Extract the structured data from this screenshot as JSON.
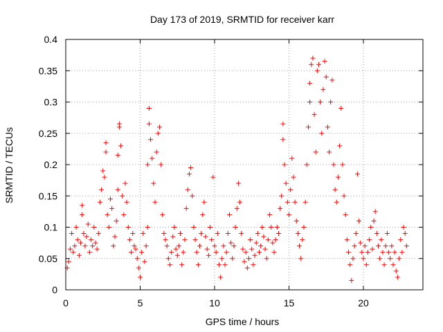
{
  "chart_data": {
    "type": "scatter",
    "title": "Day 173 of 2019, SRMTID for receiver karr",
    "xlabel": "GPS time / hours",
    "ylabel": "SRMTID / TECUs",
    "xlim": [
      0,
      24
    ],
    "ylim": [
      0,
      0.4
    ],
    "xticks": [
      "0",
      "5",
      "10",
      "15",
      "20"
    ],
    "xtick_values": [
      0,
      5,
      10,
      15,
      20
    ],
    "yticks": [
      "0",
      "0.05",
      "0.1",
      "0.15",
      "0.2",
      "0.25",
      "0.3",
      "0.35",
      "0.4"
    ],
    "ytick_values": [
      0,
      0.05,
      0.1,
      0.15,
      0.2,
      0.25,
      0.3,
      0.35,
      0.4
    ],
    "grid": true,
    "marker": "+",
    "series": [
      {
        "name": "SRMTID",
        "color": "#ff0000",
        "points": [
          [
            0.1,
            0.035
          ],
          [
            0.2,
            0.045
          ],
          [
            0.3,
            0.065
          ],
          [
            0.4,
            0.09
          ],
          [
            0.5,
            0.06
          ],
          [
            0.6,
            0.07
          ],
          [
            0.7,
            0.1
          ],
          [
            0.8,
            0.08
          ],
          [
            0.9,
            0.055
          ],
          [
            1.0,
            0.075
          ],
          [
            1.1,
            0.12
          ],
          [
            1.1,
            0.135
          ],
          [
            1.2,
            0.09
          ],
          [
            1.3,
            0.07
          ],
          [
            1.4,
            0.085
          ],
          [
            1.5,
            0.105
          ],
          [
            1.6,
            0.06
          ],
          [
            1.7,
            0.08
          ],
          [
            1.8,
            0.07
          ],
          [
            1.9,
            0.1
          ],
          [
            2.0,
            0.075
          ],
          [
            2.1,
            0.065
          ],
          [
            2.2,
            0.09
          ],
          [
            2.3,
            0.14
          ],
          [
            2.4,
            0.16
          ],
          [
            2.5,
            0.19
          ],
          [
            2.6,
            0.18
          ],
          [
            2.7,
            0.22
          ],
          [
            2.7,
            0.235
          ],
          [
            2.8,
            0.12
          ],
          [
            2.9,
            0.1
          ],
          [
            3.0,
            0.145
          ],
          [
            3.1,
            0.13
          ],
          [
            3.2,
            0.07
          ],
          [
            3.3,
            0.085
          ],
          [
            3.4,
            0.11
          ],
          [
            3.5,
            0.16
          ],
          [
            3.5,
            0.215
          ],
          [
            3.6,
            0.26
          ],
          [
            3.6,
            0.265
          ],
          [
            3.7,
            0.23
          ],
          [
            3.8,
            0.15
          ],
          [
            3.9,
            0.12
          ],
          [
            4.0,
            0.17
          ],
          [
            4.1,
            0.14
          ],
          [
            4.2,
            0.1
          ],
          [
            4.3,
            0.08
          ],
          [
            4.4,
            0.06
          ],
          [
            4.5,
            0.09
          ],
          [
            4.6,
            0.07
          ],
          [
            4.7,
            0.065
          ],
          [
            4.8,
            0.05
          ],
          [
            4.9,
            0.035
          ],
          [
            5.0,
            0.02
          ],
          [
            5.1,
            0.06
          ],
          [
            5.2,
            0.09
          ],
          [
            5.3,
            0.045
          ],
          [
            5.4,
            0.07
          ],
          [
            5.5,
            0.1
          ],
          [
            5.5,
            0.2
          ],
          [
            5.6,
            0.29
          ],
          [
            5.6,
            0.265
          ],
          [
            5.7,
            0.24
          ],
          [
            5.8,
            0.21
          ],
          [
            5.9,
            0.17
          ],
          [
            6.0,
            0.14
          ],
          [
            6.1,
            0.22
          ],
          [
            6.2,
            0.25
          ],
          [
            6.3,
            0.26
          ],
          [
            6.4,
            0.2
          ],
          [
            6.5,
            0.12
          ],
          [
            6.6,
            0.09
          ],
          [
            6.7,
            0.08
          ],
          [
            6.8,
            0.07
          ],
          [
            6.9,
            0.05
          ],
          [
            7.0,
            0.04
          ],
          [
            7.1,
            0.06
          ],
          [
            7.2,
            0.085
          ],
          [
            7.3,
            0.1
          ],
          [
            7.4,
            0.065
          ],
          [
            7.5,
            0.055
          ],
          [
            7.6,
            0.07
          ],
          [
            7.7,
            0.09
          ],
          [
            7.8,
            0.04
          ],
          [
            7.9,
            0.06
          ],
          [
            8.0,
            0.08
          ],
          [
            8.1,
            0.13
          ],
          [
            8.2,
            0.16
          ],
          [
            8.3,
            0.185
          ],
          [
            8.4,
            0.195
          ],
          [
            8.5,
            0.15
          ],
          [
            8.6,
            0.1
          ],
          [
            8.7,
            0.08
          ],
          [
            8.8,
            0.06
          ],
          [
            8.9,
            0.04
          ],
          [
            9.0,
            0.07
          ],
          [
            9.1,
            0.09
          ],
          [
            9.2,
            0.12
          ],
          [
            9.3,
            0.14
          ],
          [
            9.4,
            0.085
          ],
          [
            9.5,
            0.065
          ],
          [
            9.6,
            0.055
          ],
          [
            9.7,
            0.1
          ],
          [
            9.8,
            0.08
          ],
          [
            9.9,
            0.18
          ],
          [
            10.0,
            0.07
          ],
          [
            10.1,
            0.06
          ],
          [
            10.2,
            0.09
          ],
          [
            10.3,
            0.04
          ],
          [
            10.4,
            0.02
          ],
          [
            10.5,
            0.05
          ],
          [
            10.6,
            0.07
          ],
          [
            10.7,
            0.04
          ],
          [
            10.8,
            0.06
          ],
          [
            10.9,
            0.09
          ],
          [
            11.0,
            0.12
          ],
          [
            11.1,
            0.075
          ],
          [
            11.2,
            0.05
          ],
          [
            11.3,
            0.07
          ],
          [
            11.4,
            0.1
          ],
          [
            11.5,
            0.13
          ],
          [
            11.6,
            0.17
          ],
          [
            11.7,
            0.14
          ],
          [
            11.8,
            0.09
          ],
          [
            11.9,
            0.065
          ],
          [
            12.0,
            0.045
          ],
          [
            12.1,
            0.06
          ],
          [
            12.2,
            0.035
          ],
          [
            12.3,
            0.05
          ],
          [
            12.4,
            0.08
          ],
          [
            12.5,
            0.065
          ],
          [
            12.6,
            0.04
          ],
          [
            12.7,
            0.055
          ],
          [
            12.8,
            0.075
          ],
          [
            12.9,
            0.09
          ],
          [
            13.0,
            0.06
          ],
          [
            13.1,
            0.07
          ],
          [
            13.2,
            0.1
          ],
          [
            13.3,
            0.085
          ],
          [
            13.4,
            0.065
          ],
          [
            13.5,
            0.05
          ],
          [
            13.6,
            0.08
          ],
          [
            13.7,
            0.12
          ],
          [
            13.8,
            0.1
          ],
          [
            13.9,
            0.075
          ],
          [
            14.0,
            0.06
          ],
          [
            14.1,
            0.08
          ],
          [
            14.2,
            0.1
          ],
          [
            14.3,
            0.09
          ],
          [
            14.4,
            0.13
          ],
          [
            14.5,
            0.15
          ],
          [
            14.6,
            0.24
          ],
          [
            14.6,
            0.265
          ],
          [
            14.7,
            0.2
          ],
          [
            14.8,
            0.17
          ],
          [
            14.9,
            0.14
          ],
          [
            15.0,
            0.12
          ],
          [
            15.1,
            0.16
          ],
          [
            15.2,
            0.21
          ],
          [
            15.3,
            0.18
          ],
          [
            15.4,
            0.14
          ],
          [
            15.5,
            0.11
          ],
          [
            15.6,
            0.09
          ],
          [
            15.7,
            0.07
          ],
          [
            15.8,
            0.05
          ],
          [
            15.9,
            0.08
          ],
          [
            16.0,
            0.1
          ],
          [
            16.1,
            0.14
          ],
          [
            16.2,
            0.2
          ],
          [
            16.3,
            0.26
          ],
          [
            16.4,
            0.33
          ],
          [
            16.4,
            0.3
          ],
          [
            16.5,
            0.36
          ],
          [
            16.6,
            0.37
          ],
          [
            16.7,
            0.28
          ],
          [
            16.8,
            0.22
          ],
          [
            16.9,
            0.35
          ],
          [
            17.0,
            0.36
          ],
          [
            17.1,
            0.3
          ],
          [
            17.2,
            0.25
          ],
          [
            17.3,
            0.32
          ],
          [
            17.4,
            0.365
          ],
          [
            17.5,
            0.34
          ],
          [
            17.6,
            0.26
          ],
          [
            17.7,
            0.22
          ],
          [
            17.8,
            0.3
          ],
          [
            17.9,
            0.335
          ],
          [
            18.0,
            0.2
          ],
          [
            18.1,
            0.16
          ],
          [
            18.2,
            0.14
          ],
          [
            18.3,
            0.18
          ],
          [
            18.4,
            0.23
          ],
          [
            18.5,
            0.29
          ],
          [
            18.6,
            0.2
          ],
          [
            18.7,
            0.15
          ],
          [
            18.8,
            0.12
          ],
          [
            18.9,
            0.08
          ],
          [
            19.0,
            0.06
          ],
          [
            19.1,
            0.04
          ],
          [
            19.2,
            0.015
          ],
          [
            19.3,
            0.05
          ],
          [
            19.4,
            0.07
          ],
          [
            19.5,
            0.09
          ],
          [
            19.6,
            0.185
          ],
          [
            19.7,
            0.11
          ],
          [
            19.8,
            0.075
          ],
          [
            19.9,
            0.06
          ],
          [
            20.0,
            0.05
          ],
          [
            20.1,
            0.07
          ],
          [
            20.2,
            0.04
          ],
          [
            20.3,
            0.06
          ],
          [
            20.4,
            0.08
          ],
          [
            20.5,
            0.1
          ],
          [
            20.6,
            0.065
          ],
          [
            20.7,
            0.11
          ],
          [
            20.8,
            0.125
          ],
          [
            20.9,
            0.09
          ],
          [
            21.0,
            0.07
          ],
          [
            21.1,
            0.05
          ],
          [
            21.2,
            0.08
          ],
          [
            21.3,
            0.06
          ],
          [
            21.4,
            0.04
          ],
          [
            21.5,
            0.07
          ],
          [
            21.6,
            0.09
          ],
          [
            21.7,
            0.06
          ],
          [
            21.8,
            0.05
          ],
          [
            21.9,
            0.07
          ],
          [
            22.0,
            0.04
          ],
          [
            22.1,
            0.06
          ],
          [
            22.2,
            0.03
          ],
          [
            22.3,
            0.02
          ],
          [
            22.4,
            0.05
          ],
          [
            22.5,
            0.08
          ],
          [
            22.6,
            0.06
          ],
          [
            22.7,
            0.1
          ],
          [
            22.8,
            0.09
          ],
          [
            22.9,
            0.07
          ]
        ]
      }
    ]
  }
}
